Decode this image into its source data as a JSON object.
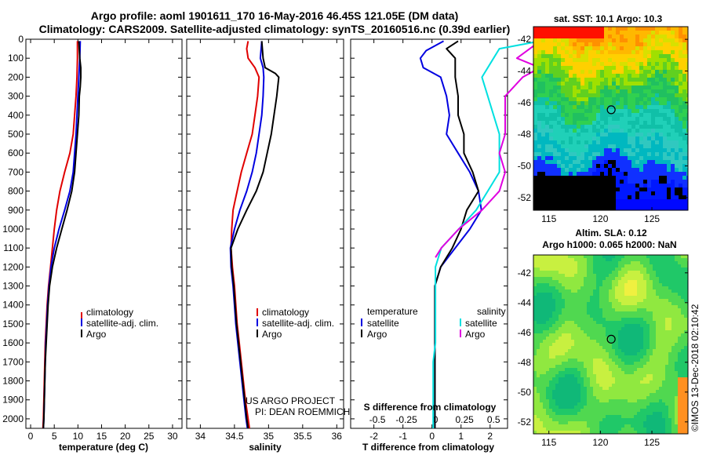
{
  "title": {
    "line1": "Argo profile: aoml 1901611_170 16-May-2016 46.45S 121.05E (DM data)",
    "line2": "Climatology: CARS2009. Satellite-adjusted climatology: synTS_20160516.nc (0.39d earlier)"
  },
  "colors": {
    "argo": "#000000",
    "climatology": "#e00000",
    "satellite": "#0000e0",
    "s_satellite": "#00e0e0",
    "s_argo": "#e000e0"
  },
  "chart_data": [
    {
      "type": "line",
      "id": "temperature",
      "xlabel": "temperature (deg C)",
      "ylabel": "",
      "xlim": [
        -1,
        32
      ],
      "ylim": [
        2050,
        0
      ],
      "xticks": [
        0,
        5,
        10,
        15,
        20,
        25,
        30
      ],
      "yticks": [
        0,
        100,
        200,
        300,
        400,
        500,
        600,
        700,
        800,
        900,
        1000,
        1100,
        1200,
        1300,
        1400,
        1500,
        1600,
        1700,
        1800,
        1900,
        2000
      ],
      "legend": [
        "climatology",
        "satellite-adj. clim.",
        "Argo"
      ],
      "series": [
        {
          "name": "climatology",
          "color": "#e00000",
          "points": [
            [
              9.9,
              10
            ],
            [
              9.9,
              100
            ],
            [
              9.8,
              200
            ],
            [
              9.6,
              300
            ],
            [
              9.3,
              400
            ],
            [
              9.0,
              500
            ],
            [
              8.3,
              600
            ],
            [
              7.2,
              700
            ],
            [
              6.2,
              800
            ],
            [
              5.5,
              900
            ],
            [
              5.0,
              1000
            ],
            [
              4.6,
              1100
            ],
            [
              4.2,
              1200
            ],
            [
              3.8,
              1300
            ],
            [
              3.5,
              1400
            ],
            [
              3.3,
              1500
            ],
            [
              3.1,
              1600
            ],
            [
              3.0,
              1700
            ],
            [
              2.9,
              1800
            ],
            [
              2.8,
              1900
            ],
            [
              2.7,
              2000
            ],
            [
              2.6,
              2050
            ]
          ]
        },
        {
          "name": "satellite-adj. clim.",
          "color": "#0000e0",
          "points": [
            [
              10.5,
              10
            ],
            [
              10.4,
              100
            ],
            [
              10.2,
              200
            ],
            [
              10.0,
              300
            ],
            [
              9.8,
              400
            ],
            [
              9.6,
              500
            ],
            [
              9.3,
              600
            ],
            [
              9.0,
              700
            ],
            [
              8.3,
              800
            ],
            [
              7.2,
              900
            ],
            [
              6.0,
              1000
            ],
            [
              5.0,
              1100
            ],
            [
              4.3,
              1200
            ],
            [
              3.9,
              1300
            ],
            [
              3.6,
              1400
            ],
            [
              3.4,
              1500
            ],
            [
              3.2,
              1600
            ],
            [
              3.1,
              1700
            ],
            [
              3.0,
              1800
            ],
            [
              2.9,
              1900
            ],
            [
              2.8,
              2000
            ],
            [
              2.7,
              2050
            ]
          ]
        },
        {
          "name": "Argo",
          "color": "#000000",
          "points": [
            [
              10.2,
              10
            ],
            [
              10.4,
              100
            ],
            [
              10.6,
              150
            ],
            [
              10.6,
              200
            ],
            [
              10.5,
              250
            ],
            [
              10.3,
              300
            ],
            [
              10.2,
              400
            ],
            [
              9.9,
              500
            ],
            [
              9.6,
              600
            ],
            [
              9.3,
              700
            ],
            [
              8.7,
              800
            ],
            [
              7.7,
              900
            ],
            [
              6.6,
              1000
            ],
            [
              5.5,
              1100
            ],
            [
              4.6,
              1200
            ],
            [
              4.0,
              1300
            ],
            [
              3.7,
              1400
            ],
            [
              3.5,
              1500
            ],
            [
              3.3,
              1600
            ],
            [
              3.1,
              1700
            ],
            [
              3.0,
              1800
            ],
            [
              2.9,
              1900
            ],
            [
              2.8,
              2000
            ],
            [
              2.7,
              2050
            ]
          ]
        }
      ]
    },
    {
      "type": "line",
      "id": "salinity",
      "xlabel": "salinity",
      "ylabel": "",
      "xlim": [
        33.8,
        36.1
      ],
      "ylim": [
        2050,
        0
      ],
      "xticks": [
        34,
        34.5,
        35,
        35.5,
        36
      ],
      "xticklabels": [
        "34",
        "34.5",
        "35",
        "35.5",
        "36"
      ],
      "legend": [
        "climatology",
        "satellite-adj. clim.",
        "Argo"
      ],
      "series": [
        {
          "name": "climatology",
          "color": "#e00000",
          "points": [
            [
              34.7,
              10
            ],
            [
              34.68,
              50
            ],
            [
              34.7,
              100
            ],
            [
              34.8,
              150
            ],
            [
              34.86,
              200
            ],
            [
              34.84,
              300
            ],
            [
              34.8,
              400
            ],
            [
              34.76,
              500
            ],
            [
              34.68,
              600
            ],
            [
              34.6,
              700
            ],
            [
              34.54,
              800
            ],
            [
              34.48,
              900
            ],
            [
              34.46,
              1000
            ],
            [
              34.45,
              1100
            ],
            [
              34.47,
              1200
            ],
            [
              34.5,
              1300
            ],
            [
              34.52,
              1400
            ],
            [
              34.54,
              1500
            ],
            [
              34.57,
              1600
            ],
            [
              34.6,
              1700
            ],
            [
              34.63,
              1800
            ],
            [
              34.66,
              1900
            ],
            [
              34.7,
              2000
            ],
            [
              34.72,
              2050
            ]
          ]
        },
        {
          "name": "satellite-adj. clim.",
          "color": "#0000e0",
          "points": [
            [
              34.9,
              10
            ],
            [
              34.88,
              100
            ],
            [
              34.92,
              150
            ],
            [
              34.93,
              200
            ],
            [
              34.92,
              300
            ],
            [
              34.9,
              400
            ],
            [
              34.86,
              500
            ],
            [
              34.82,
              600
            ],
            [
              34.76,
              700
            ],
            [
              34.68,
              800
            ],
            [
              34.58,
              900
            ],
            [
              34.5,
              1000
            ],
            [
              34.44,
              1100
            ],
            [
              34.45,
              1200
            ],
            [
              34.48,
              1300
            ],
            [
              34.5,
              1400
            ],
            [
              34.52,
              1500
            ],
            [
              34.55,
              1600
            ],
            [
              34.58,
              1700
            ],
            [
              34.61,
              1800
            ],
            [
              34.64,
              1900
            ],
            [
              34.67,
              2000
            ],
            [
              34.69,
              2050
            ]
          ]
        },
        {
          "name": "Argo",
          "color": "#000000",
          "points": [
            [
              34.9,
              10
            ],
            [
              34.92,
              100
            ],
            [
              34.95,
              150
            ],
            [
              35.1,
              180
            ],
            [
              35.15,
              200
            ],
            [
              35.12,
              300
            ],
            [
              35.08,
              400
            ],
            [
              35.04,
              500
            ],
            [
              34.98,
              600
            ],
            [
              34.92,
              700
            ],
            [
              34.82,
              800
            ],
            [
              34.68,
              900
            ],
            [
              34.55,
              1000
            ],
            [
              34.45,
              1100
            ],
            [
              34.46,
              1200
            ],
            [
              34.49,
              1300
            ],
            [
              34.51,
              1400
            ],
            [
              34.53,
              1500
            ],
            [
              34.56,
              1600
            ],
            [
              34.59,
              1700
            ],
            [
              34.62,
              1800
            ],
            [
              34.65,
              1900
            ],
            [
              34.68,
              2000
            ],
            [
              34.7,
              2050
            ]
          ]
        }
      ]
    },
    {
      "type": "line",
      "id": "difference",
      "xlabel": "T difference from climatology",
      "xlabel2": "S difference from climatology",
      "ylabel": "",
      "xlim": [
        -2.8,
        2.6
      ],
      "ylim": [
        2050,
        0
      ],
      "xticks": [
        -2,
        -1,
        0,
        1,
        2
      ],
      "xticklabels": [
        "-2",
        "-1",
        "0",
        "1",
        "2"
      ],
      "sticks": [
        -0.5,
        -0.25,
        0,
        0.25,
        0.5
      ],
      "sticklabels": [
        "-0.5",
        "-0.25",
        "0",
        "0.25",
        "0.5"
      ],
      "legend_left_title": "temperature",
      "legend_right_title": "salinity",
      "legend_left": [
        "satellite",
        "Argo"
      ],
      "legend_right": [
        "satellite",
        "Argo"
      ],
      "series": [
        {
          "name": "satellite",
          "color": "#0000e0",
          "points": [
            [
              0.4,
              10
            ],
            [
              -0.2,
              60
            ],
            [
              -0.4,
              100
            ],
            [
              -0.3,
              150
            ],
            [
              0.3,
              200
            ],
            [
              0.5,
              300
            ],
            [
              0.6,
              400
            ],
            [
              0.5,
              500
            ],
            [
              0.9,
              600
            ],
            [
              1.3,
              700
            ],
            [
              1.6,
              800
            ],
            [
              1.7,
              900
            ],
            [
              1.3,
              1000
            ],
            [
              0.8,
              1100
            ],
            [
              0.3,
              1200
            ],
            [
              0.1,
              1300
            ],
            [
              0.1,
              1400
            ],
            [
              0.1,
              1500
            ],
            [
              0.1,
              1600
            ],
            [
              0.1,
              1700
            ],
            [
              0.1,
              1800
            ],
            [
              0.1,
              1900
            ],
            [
              0.1,
              2000
            ],
            [
              0.1,
              2050
            ]
          ]
        },
        {
          "name": "Argo",
          "color": "#000000",
          "points": [
            [
              0.9,
              10
            ],
            [
              0.5,
              50
            ],
            [
              0.8,
              100
            ],
            [
              0.8,
              200
            ],
            [
              0.9,
              300
            ],
            [
              0.9,
              400
            ],
            [
              1.1,
              500
            ],
            [
              1.1,
              600
            ],
            [
              1.4,
              700
            ],
            [
              1.6,
              800
            ],
            [
              1.2,
              900
            ],
            [
              1.0,
              1000
            ],
            [
              0.7,
              1100
            ],
            [
              0.3,
              1200
            ],
            [
              0.1,
              1300
            ],
            [
              0.1,
              1400
            ],
            [
              0.1,
              1500
            ],
            [
              0.1,
              1600
            ],
            [
              0.1,
              1700
            ],
            [
              0.1,
              1800
            ],
            [
              0.1,
              1900
            ],
            [
              0.1,
              2000
            ],
            [
              0.1,
              2050
            ]
          ]
        },
        {
          "name": "S satellite",
          "color": "#00e0e0",
          "points": [
            [
              0.9,
              10
            ],
            [
              0.55,
              50
            ],
            [
              0.5,
              100
            ],
            [
              0.4,
              200
            ],
            [
              0.45,
              300
            ],
            [
              0.5,
              400
            ],
            [
              0.55,
              500
            ],
            [
              0.55,
              600
            ],
            [
              0.55,
              700
            ],
            [
              0.45,
              800
            ],
            [
              0.35,
              900
            ],
            [
              0.2,
              1000
            ],
            [
              0.05,
              1100
            ],
            [
              0.0,
              1200
            ],
            [
              0.0,
              1300
            ],
            [
              0.0,
              1400
            ],
            [
              0.0,
              1500
            ],
            [
              0.0,
              1600
            ],
            [
              -0.02,
              1700
            ],
            [
              -0.02,
              1800
            ],
            [
              -0.02,
              1900
            ],
            [
              -0.02,
              2000
            ],
            [
              -0.02,
              2050
            ]
          ]
        },
        {
          "name": "S Argo",
          "color": "#e000e0",
          "points": [
            [
              0.9,
              10
            ],
            [
              0.7,
              100
            ],
            [
              0.9,
              150
            ],
            [
              0.75,
              200
            ],
            [
              0.6,
              300
            ],
            [
              0.6,
              400
            ],
            [
              0.6,
              500
            ],
            [
              0.55,
              600
            ],
            [
              0.6,
              700
            ],
            [
              0.55,
              800
            ],
            [
              0.4,
              900
            ],
            [
              0.2,
              1000
            ],
            [
              0.05,
              1100
            ],
            [
              0.0,
              1150
            ]
          ]
        }
      ]
    },
    {
      "type": "heatmap",
      "id": "sst_map",
      "title": "sat. SST: 10.1  Argo: 10.3",
      "xlim": [
        113.5,
        128.5
      ],
      "ylim": [
        -52.8,
        -41.2
      ],
      "xticks": [
        115,
        120,
        125
      ],
      "yticks": [
        -42,
        -44,
        -46,
        -48,
        -50,
        -52
      ],
      "marker": [
        121.05,
        -46.45
      ]
    },
    {
      "type": "heatmap",
      "id": "sla_map",
      "title": "Altim. SLA: 0.12",
      "subtitle": "Argo h1000: 0.065 h2000: NaN",
      "xlim": [
        113.5,
        128.5
      ],
      "ylim": [
        -52.8,
        -40.8
      ],
      "xticks": [
        115,
        120,
        125
      ],
      "yticks": [
        -42,
        -44,
        -46,
        -48,
        -50,
        -52
      ],
      "marker": [
        121.05,
        -46.45
      ]
    }
  ],
  "annotations": {
    "project_line1": "US ARGO PROJECT",
    "project_line2": "PI: DEAN ROEMMICH",
    "credit": "©IMOS 13-Dec-2018 02:10:42"
  }
}
